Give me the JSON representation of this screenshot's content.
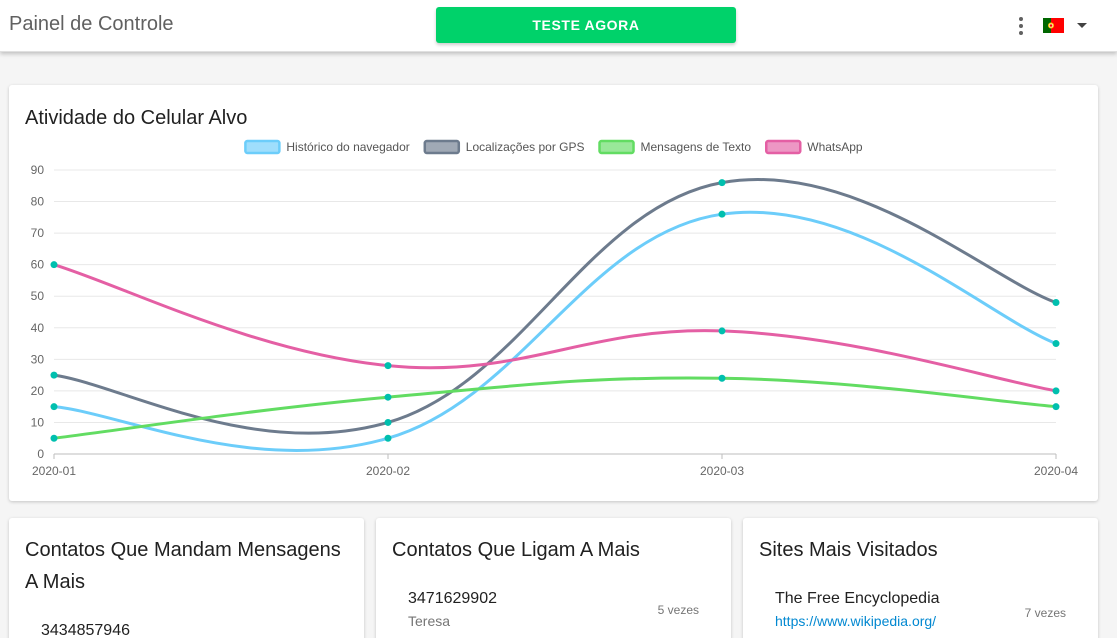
{
  "header": {
    "title": "Painel de Controle",
    "cta_label": "TESTE AGORA",
    "menu_icon": "more-vert-icon",
    "language_flag": "portugal-flag-icon"
  },
  "activity": {
    "title": "Atividade do Celular Alvo"
  },
  "chart_data": {
    "type": "line",
    "categories": [
      "2020-01",
      "2020-02",
      "2020-03",
      "2020-04"
    ],
    "ylim": [
      0,
      90
    ],
    "yticks": [
      0,
      10,
      20,
      30,
      40,
      50,
      60,
      70,
      80,
      90
    ],
    "legend_position": "top-center",
    "grid": true,
    "point_color": "#00bfae",
    "series": [
      {
        "name": "Histórico do navegador",
        "values": [
          15,
          5,
          76,
          35
        ],
        "color": "#6ccdfa"
      },
      {
        "name": "Localizações por GPS",
        "values": [
          25,
          10,
          86,
          48
        ],
        "color": "#6d7b8d"
      },
      {
        "name": "Mensagens de Texto",
        "values": [
          5,
          18,
          24,
          15
        ],
        "color": "#62dc62"
      },
      {
        "name": "WhatsApp",
        "values": [
          60,
          28,
          39,
          20
        ],
        "color": "#e45fa4"
      }
    ]
  },
  "messages_card": {
    "title": "Contatos Que Mandam Mensagens A Mais",
    "first_item": {
      "number": "3434857946"
    }
  },
  "calls_card": {
    "title": "Contatos Que Ligam A Mais",
    "first_item": {
      "number": "3471629902",
      "name": "Teresa",
      "count": "5 vezes"
    }
  },
  "sites_card": {
    "title": "Sites Mais Visitados",
    "first_item": {
      "name": "The Free Encyclopedia",
      "url": "https://www.wikipedia.org/",
      "count": "7 vezes"
    }
  }
}
